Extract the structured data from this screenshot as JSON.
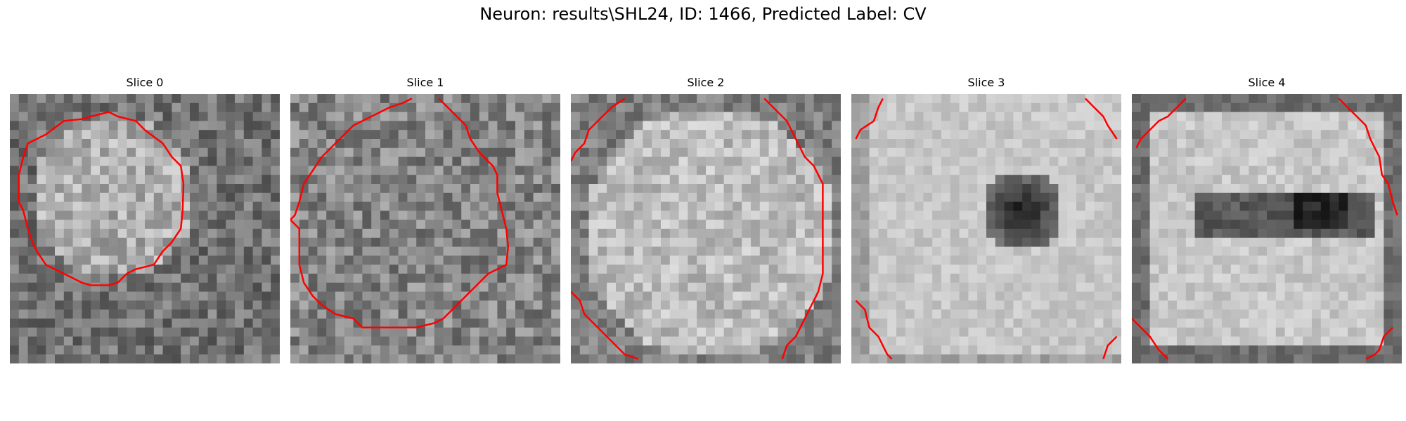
{
  "figure": {
    "title": "Neuron: results\\SHL24, ID: 1466, Predicted Label: CV"
  },
  "colors": {
    "contour": "#ff0000",
    "colormap": "gray",
    "background": "#ffffff"
  },
  "slices": [
    {
      "title": "Slice 0"
    },
    {
      "title": "Slice 1"
    },
    {
      "title": "Slice 2"
    },
    {
      "title": "Slice 3"
    },
    {
      "title": "Slice 4"
    }
  ]
}
